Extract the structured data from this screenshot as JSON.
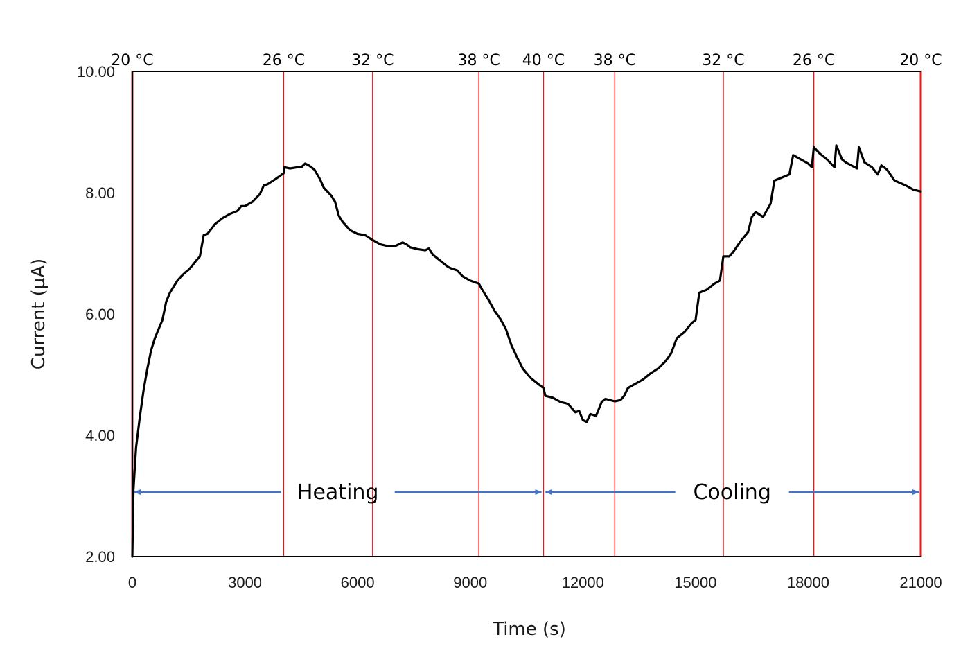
{
  "chart_data": {
    "type": "line",
    "xlabel": "Time (s)",
    "ylabel": "Current (µA)",
    "xlim": [
      0,
      21000
    ],
    "ylim": [
      2,
      10
    ],
    "x_ticks": [
      {
        "value": 0,
        "label": "0"
      },
      {
        "value": 3000,
        "label": "3000"
      },
      {
        "value": 6000,
        "label": "6000"
      },
      {
        "value": 9000,
        "label": "9000"
      },
      {
        "value": 12000,
        "label": "12000"
      },
      {
        "value": 15000,
        "label": "15000"
      },
      {
        "value": 18000,
        "label": "18000"
      },
      {
        "value": 21000,
        "label": "21000"
      }
    ],
    "y_ticks": [
      {
        "value": 2,
        "label": "2.00"
      },
      {
        "value": 4,
        "label": "4.00"
      },
      {
        "value": 6,
        "label": "6.00"
      },
      {
        "value": 8,
        "label": "8.00"
      },
      {
        "value": 10,
        "label": "10.00"
      }
    ],
    "temperature_markers": [
      {
        "time": 0,
        "label": "20 °C"
      },
      {
        "time": 4030,
        "label": "26 °C"
      },
      {
        "time": 6400,
        "label": "32 °C"
      },
      {
        "time": 9230,
        "label": "38 °C"
      },
      {
        "time": 10950,
        "label": "40 °C"
      },
      {
        "time": 12850,
        "label": "38 °C"
      },
      {
        "time": 15740,
        "label": "32 °C"
      },
      {
        "time": 18150,
        "label": "26 °C"
      },
      {
        "time": 21000,
        "label": "20 °C"
      }
    ],
    "phases": [
      {
        "label": "Heating",
        "start": 0,
        "end": 10950
      },
      {
        "label": "Cooling",
        "start": 10950,
        "end": 21000
      }
    ],
    "series": [
      {
        "name": "Current",
        "points": [
          [
            0,
            2.0
          ],
          [
            30,
            3.1
          ],
          [
            100,
            3.8
          ],
          [
            200,
            4.3
          ],
          [
            300,
            4.75
          ],
          [
            400,
            5.1
          ],
          [
            500,
            5.4
          ],
          [
            600,
            5.6
          ],
          [
            700,
            5.75
          ],
          [
            800,
            5.9
          ],
          [
            900,
            6.2
          ],
          [
            1000,
            6.35
          ],
          [
            1100,
            6.45
          ],
          [
            1200,
            6.55
          ],
          [
            1300,
            6.62
          ],
          [
            1400,
            6.68
          ],
          [
            1500,
            6.73
          ],
          [
            1600,
            6.8
          ],
          [
            1700,
            6.88
          ],
          [
            1800,
            6.95
          ],
          [
            1900,
            7.3
          ],
          [
            2000,
            7.32
          ],
          [
            2100,
            7.4
          ],
          [
            2200,
            7.48
          ],
          [
            2400,
            7.58
          ],
          [
            2600,
            7.65
          ],
          [
            2800,
            7.7
          ],
          [
            2900,
            7.78
          ],
          [
            3000,
            7.78
          ],
          [
            3200,
            7.85
          ],
          [
            3400,
            7.98
          ],
          [
            3500,
            8.12
          ],
          [
            3600,
            8.14
          ],
          [
            3800,
            8.22
          ],
          [
            4030,
            8.32
          ],
          [
            4050,
            8.42
          ],
          [
            4200,
            8.4
          ],
          [
            4400,
            8.42
          ],
          [
            4500,
            8.42
          ],
          [
            4600,
            8.48
          ],
          [
            4700,
            8.45
          ],
          [
            4850,
            8.38
          ],
          [
            5000,
            8.22
          ],
          [
            5100,
            8.08
          ],
          [
            5300,
            7.95
          ],
          [
            5400,
            7.85
          ],
          [
            5500,
            7.62
          ],
          [
            5600,
            7.52
          ],
          [
            5800,
            7.38
          ],
          [
            6000,
            7.32
          ],
          [
            6200,
            7.3
          ],
          [
            6400,
            7.22
          ],
          [
            6600,
            7.15
          ],
          [
            6800,
            7.12
          ],
          [
            7000,
            7.12
          ],
          [
            7200,
            7.18
          ],
          [
            7300,
            7.15
          ],
          [
            7400,
            7.1
          ],
          [
            7600,
            7.07
          ],
          [
            7800,
            7.05
          ],
          [
            7900,
            7.08
          ],
          [
            8000,
            6.98
          ],
          [
            8200,
            6.88
          ],
          [
            8400,
            6.78
          ],
          [
            8500,
            6.75
          ],
          [
            8650,
            6.72
          ],
          [
            8800,
            6.62
          ],
          [
            9000,
            6.55
          ],
          [
            9230,
            6.5
          ],
          [
            9300,
            6.42
          ],
          [
            9500,
            6.22
          ],
          [
            9650,
            6.05
          ],
          [
            9800,
            5.92
          ],
          [
            9950,
            5.75
          ],
          [
            10100,
            5.48
          ],
          [
            10250,
            5.28
          ],
          [
            10400,
            5.1
          ],
          [
            10600,
            4.95
          ],
          [
            10800,
            4.85
          ],
          [
            10950,
            4.78
          ],
          [
            11000,
            4.65
          ],
          [
            11200,
            4.62
          ],
          [
            11400,
            4.55
          ],
          [
            11600,
            4.52
          ],
          [
            11800,
            4.38
          ],
          [
            11900,
            4.4
          ],
          [
            12000,
            4.25
          ],
          [
            12100,
            4.22
          ],
          [
            12200,
            4.35
          ],
          [
            12350,
            4.32
          ],
          [
            12500,
            4.55
          ],
          [
            12600,
            4.6
          ],
          [
            12850,
            4.56
          ],
          [
            13000,
            4.58
          ],
          [
            13100,
            4.65
          ],
          [
            13200,
            4.78
          ],
          [
            13400,
            4.85
          ],
          [
            13600,
            4.92
          ],
          [
            13800,
            5.02
          ],
          [
            14000,
            5.1
          ],
          [
            14200,
            5.22
          ],
          [
            14350,
            5.35
          ],
          [
            14500,
            5.6
          ],
          [
            14700,
            5.7
          ],
          [
            14900,
            5.85
          ],
          [
            15000,
            5.9
          ],
          [
            15100,
            6.35
          ],
          [
            15300,
            6.4
          ],
          [
            15500,
            6.5
          ],
          [
            15650,
            6.55
          ],
          [
            15740,
            6.95
          ],
          [
            15900,
            6.95
          ],
          [
            16000,
            7.02
          ],
          [
            16200,
            7.2
          ],
          [
            16400,
            7.35
          ],
          [
            16500,
            7.6
          ],
          [
            16600,
            7.68
          ],
          [
            16800,
            7.6
          ],
          [
            17000,
            7.82
          ],
          [
            17100,
            8.2
          ],
          [
            17300,
            8.25
          ],
          [
            17500,
            8.3
          ],
          [
            17600,
            8.62
          ],
          [
            17800,
            8.55
          ],
          [
            18000,
            8.48
          ],
          [
            18100,
            8.42
          ],
          [
            18150,
            8.75
          ],
          [
            18300,
            8.65
          ],
          [
            18500,
            8.55
          ],
          [
            18700,
            8.42
          ],
          [
            18750,
            8.78
          ],
          [
            18900,
            8.55
          ],
          [
            19000,
            8.5
          ],
          [
            19300,
            8.4
          ],
          [
            19350,
            8.75
          ],
          [
            19500,
            8.5
          ],
          [
            19700,
            8.42
          ],
          [
            19850,
            8.3
          ],
          [
            19950,
            8.45
          ],
          [
            20100,
            8.38
          ],
          [
            20300,
            8.2
          ],
          [
            20600,
            8.12
          ],
          [
            20800,
            8.05
          ],
          [
            21000,
            8.02
          ]
        ]
      }
    ]
  },
  "colors": {
    "line": "#000000",
    "marker": "#e31a1c",
    "arrow": "#4472c4",
    "axis": "#000000",
    "text": "#1a1a1a"
  }
}
